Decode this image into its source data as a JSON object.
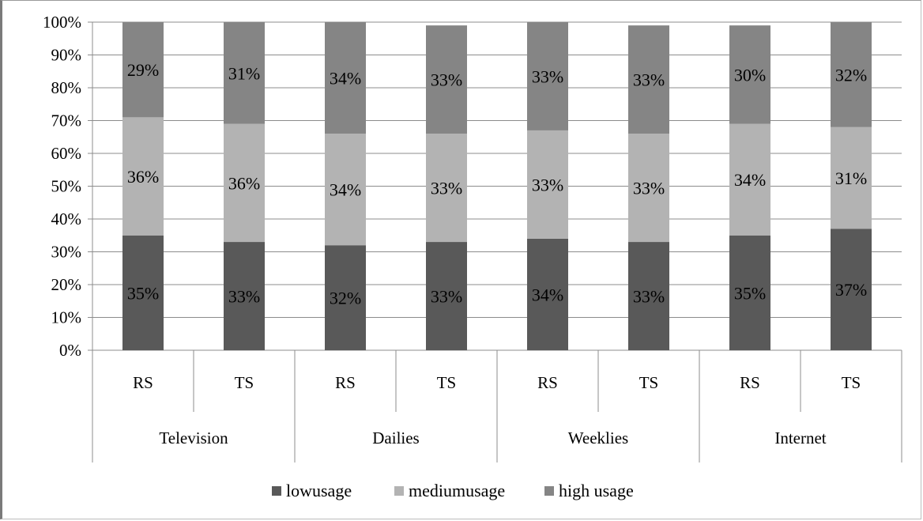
{
  "chart_data": {
    "type": "bar",
    "stacked": true,
    "normalized": true,
    "title": "",
    "xlabel": "",
    "ylabel": "",
    "ylim": [
      0,
      100
    ],
    "y_ticks": [
      "0%",
      "10%",
      "20%",
      "30%",
      "40%",
      "50%",
      "60%",
      "70%",
      "80%",
      "90%",
      "100%"
    ],
    "grid": true,
    "legend_position": "bottom",
    "groups": [
      "Television",
      "Dailies",
      "Weeklies",
      "Internet"
    ],
    "categories": [
      "RS",
      "TS",
      "RS",
      "TS",
      "RS",
      "TS",
      "RS",
      "TS"
    ],
    "series": [
      {
        "name": "low usage",
        "legend_label": "lowusage",
        "color": "#595959",
        "values": [
          35,
          33,
          32,
          33,
          34,
          33,
          35,
          37
        ],
        "labels": [
          "35%",
          "33%",
          "32%",
          "33%",
          "34%",
          "33%",
          "35%",
          "37%"
        ]
      },
      {
        "name": "medium usage",
        "legend_label": "mediumusage",
        "color": "#b3b3b3",
        "values": [
          36,
          36,
          34,
          33,
          33,
          33,
          34,
          31
        ],
        "labels": [
          "36%",
          "36%",
          "34%",
          "33%",
          "33%",
          "33%",
          "34%",
          "31%"
        ]
      },
      {
        "name": "high usage",
        "legend_label": "high usage",
        "color": "#858585",
        "values": [
          29,
          31,
          34,
          33,
          33,
          33,
          30,
          32
        ],
        "labels": [
          "29%",
          "31%",
          "34%",
          "33%",
          "33%",
          "33%",
          "30%",
          "32%"
        ]
      }
    ]
  }
}
